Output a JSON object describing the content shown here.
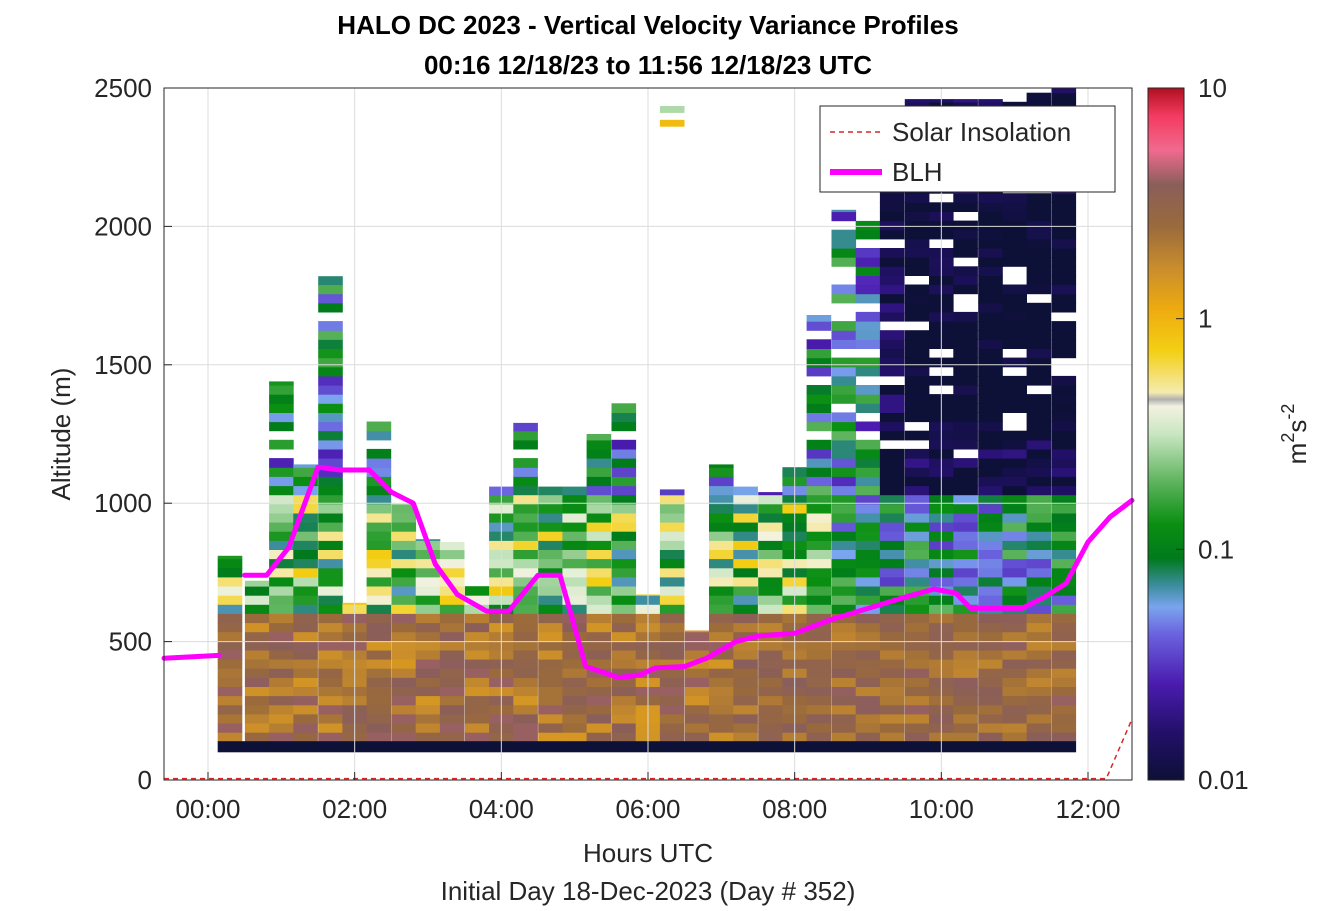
{
  "chart_data": {
    "type": "heatmap",
    "title": "HALO DC 2023 - Vertical Velocity Variance Profiles",
    "subtitle": "00:16 12/18/23 to 11:56 12/18/23  UTC",
    "xlabel": "Hours UTC",
    "xlabel2": "Initial Day 18-Dec-2023 (Day # 352)",
    "ylabel": "Altitude (m)",
    "colorbar_label": "m^2 s^-2",
    "colorbar_unit_main": "m",
    "colorbar_unit_sup1": "2",
    "colorbar_unit_mid": "s",
    "colorbar_unit_sup2": "-2",
    "colorbar_scale": "log",
    "colorbar_range": [
      0.01,
      10
    ],
    "colorbar_ticks": [
      "10",
      "1",
      "0.1",
      "0.01"
    ],
    "x_ticks": [
      "00:00",
      "02:00",
      "04:00",
      "06:00",
      "08:00",
      "10:00",
      "12:00"
    ],
    "x_tick_hours": [
      0,
      2,
      4,
      6,
      8,
      10,
      12
    ],
    "xlim_hours": [
      -0.6,
      12.6
    ],
    "y_ticks": [
      "0",
      "500",
      "1000",
      "1500",
      "2000",
      "2500"
    ],
    "y_tick_values": [
      0,
      500,
      1000,
      1500,
      2000,
      2500
    ],
    "ylim": [
      0,
      2500
    ],
    "grid": true,
    "legend_position": "top-right",
    "legend": [
      {
        "name": "Solar Insolation",
        "color": "#d62728",
        "style": "dashed"
      },
      {
        "name": "BLH",
        "color": "#ff00ff",
        "style": "solid"
      }
    ],
    "blh": {
      "hours": [
        -0.6,
        0.15,
        null,
        0.5,
        0.8,
        1.1,
        1.5,
        1.8,
        2.2,
        2.5,
        2.8,
        3.1,
        3.4,
        3.8,
        4.1,
        4.5,
        4.8,
        5.15,
        5.6,
        5.9,
        6.1,
        6.5,
        6.8,
        7.2,
        7.5,
        8.0,
        8.5,
        9.0,
        9.5,
        9.9,
        10.2,
        10.4,
        10.7,
        11.1,
        11.4,
        11.7,
        12.0,
        12.3,
        12.6
      ],
      "altitude_m": [
        440,
        450,
        null,
        740,
        740,
        840,
        1130,
        1120,
        1120,
        1040,
        1000,
        780,
        670,
        610,
        610,
        740,
        740,
        410,
        370,
        380,
        405,
        410,
        440,
        500,
        520,
        530,
        580,
        620,
        660,
        690,
        675,
        620,
        620,
        620,
        660,
        710,
        860,
        950,
        1010
      ]
    },
    "solar_insolation": {
      "hours": [
        -0.6,
        12.1,
        12.25,
        12.6
      ],
      "altitude_m": [
        5,
        5,
        5,
        220
      ]
    },
    "profiles": [
      {
        "hour": 0.3,
        "top_m": 810,
        "seed": 3
      },
      {
        "hour": 0.67,
        "top_m": 720,
        "seed": 7
      },
      {
        "hour": 1.0,
        "top_m": 1440,
        "seed": 11
      },
      {
        "hour": 1.33,
        "top_m": 1140,
        "seed": 13
      },
      {
        "hour": 1.67,
        "top_m": 1820,
        "seed": 17
      },
      {
        "hour": 2.0,
        "top_m": 640,
        "seed": 19
      },
      {
        "hour": 2.33,
        "top_m": 1390,
        "seed": 23
      },
      {
        "hour": 2.67,
        "top_m": 1000,
        "seed": 29
      },
      {
        "hour": 3.0,
        "top_m": 870,
        "seed": 31
      },
      {
        "hour": 3.33,
        "top_m": 860,
        "seed": 37
      },
      {
        "hour": 3.67,
        "top_m": 700,
        "seed": 41
      },
      {
        "hour": 4.0,
        "top_m": 1060,
        "seed": 43
      },
      {
        "hour": 4.33,
        "top_m": 1290,
        "seed": 47
      },
      {
        "hour": 4.67,
        "top_m": 1060,
        "seed": 53
      },
      {
        "hour": 5.0,
        "top_m": 1060,
        "seed": 59
      },
      {
        "hour": 5.33,
        "top_m": 1250,
        "seed": 61
      },
      {
        "hour": 5.67,
        "top_m": 1380,
        "seed": 67
      },
      {
        "hour": 6.0,
        "top_m": 670,
        "seed": 71
      },
      {
        "hour": 6.33,
        "top_m": 1050,
        "seed": 73
      },
      {
        "hour": 6.67,
        "top_m": 540,
        "seed": 79
      },
      {
        "hour": 7.0,
        "top_m": 1140,
        "seed": 83
      },
      {
        "hour": 7.33,
        "top_m": 1060,
        "seed": 89
      },
      {
        "hour": 7.67,
        "top_m": 1040,
        "seed": 97
      },
      {
        "hour": 8.0,
        "top_m": 1130,
        "seed": 101
      },
      {
        "hour": 8.33,
        "top_m": 1680,
        "seed": 103
      },
      {
        "hour": 8.67,
        "top_m": 2060,
        "seed": 107
      },
      {
        "hour": 9.0,
        "top_m": 2020,
        "seed": 109
      },
      {
        "hour": 9.33,
        "top_m": 2180,
        "seed": 113
      },
      {
        "hour": 9.67,
        "top_m": 2460,
        "seed": 127
      },
      {
        "hour": 10.0,
        "top_m": 2460,
        "seed": 131
      },
      {
        "hour": 10.33,
        "top_m": 2460,
        "seed": 137
      },
      {
        "hour": 10.67,
        "top_m": 2460,
        "seed": 139
      },
      {
        "hour": 11.0,
        "top_m": 2470,
        "seed": 149
      },
      {
        "hour": 11.33,
        "top_m": 2500,
        "seed": 151
      },
      {
        "hour": 11.67,
        "top_m": 2500,
        "seed": 157
      }
    ],
    "isolated_cells": [
      {
        "hour": 6.33,
        "altitude_m": 2360,
        "value": 0.9
      },
      {
        "hour": 6.33,
        "altitude_m": 2410,
        "value": 0.28
      }
    ],
    "bottom_band": {
      "altitude_m": [
        100,
        140
      ],
      "value": 0.01
    }
  }
}
